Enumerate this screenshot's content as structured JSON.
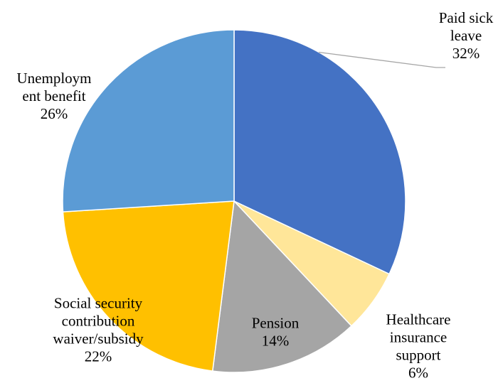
{
  "chart_data": {
    "type": "pie",
    "start_angle_deg": 0,
    "direction": "clockwise",
    "slices": [
      {
        "label_lines": [
          "Paid sick",
          "leave"
        ],
        "value": 32,
        "value_text": "32%",
        "color": "#4472C4"
      },
      {
        "label_lines": [
          "Healthcare",
          "insurance",
          "support"
        ],
        "value": 6,
        "value_text": "6%",
        "color": "#FFE699"
      },
      {
        "label_lines": [
          "Pension"
        ],
        "value": 14,
        "value_text": "14%",
        "color": "#A5A5A5"
      },
      {
        "label_lines": [
          "Social security",
          "contribution",
          "waiver/subsidy"
        ],
        "value": 22,
        "value_text": "22%",
        "color": "#FFC000"
      },
      {
        "label_lines": [
          "Unemploym",
          "ent benefit"
        ],
        "value": 26,
        "value_text": "26%",
        "color": "#5B9BD5"
      }
    ],
    "leader_line_color": "#A6A6A6",
    "legend": "none"
  }
}
